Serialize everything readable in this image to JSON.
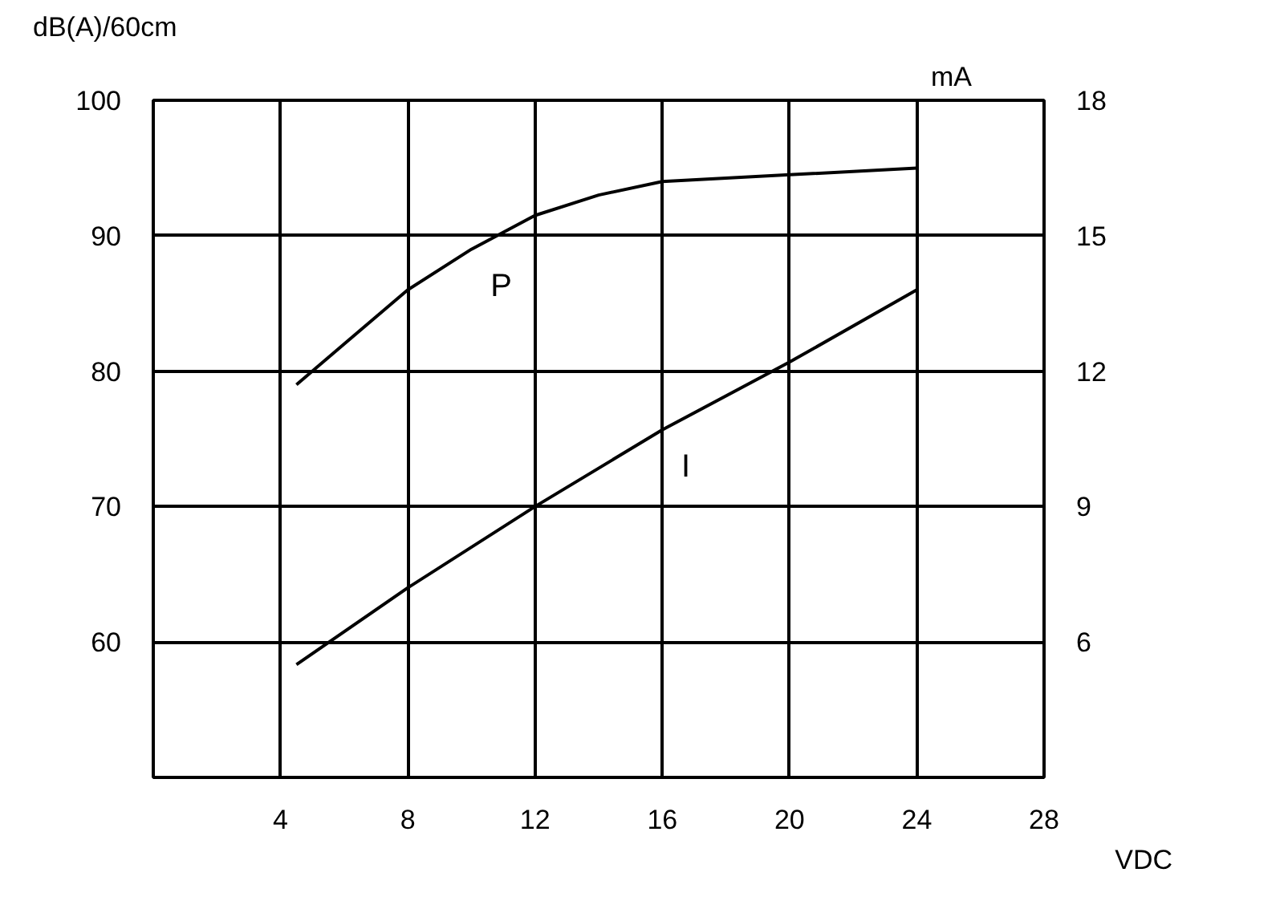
{
  "chart_data": {
    "type": "line",
    "xlabel": "VDC",
    "ylabel": "dB(A)/60cm",
    "y2label": "mA",
    "xlim": [
      0,
      28
    ],
    "xticks": [
      4,
      8,
      12,
      16,
      20,
      24,
      28
    ],
    "ylim": [
      50,
      100
    ],
    "yticks": [
      60,
      70,
      80,
      90,
      100
    ],
    "y2lim": [
      3,
      18
    ],
    "y2ticks": [
      6,
      9,
      12,
      15,
      18
    ],
    "grid": true,
    "marker": "none",
    "line_style": "solid",
    "series": [
      {
        "name": "P",
        "color": "#000000",
        "x": [
          4.5,
          6,
          8,
          10,
          12,
          14,
          16,
          20,
          24
        ],
        "values": [
          79,
          82,
          86,
          89,
          91.5,
          93,
          94,
          94.5,
          95
        ]
      },
      {
        "name": "I",
        "color": "#000000",
        "axis": "y2",
        "x": [
          4.5,
          8,
          12,
          16,
          20,
          24
        ],
        "values": [
          5.5,
          7.2,
          9.0,
          10.7,
          12.2,
          13.8
        ]
      }
    ]
  }
}
